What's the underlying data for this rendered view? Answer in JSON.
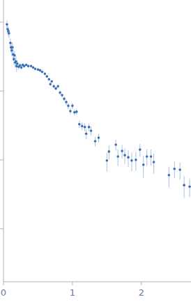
{
  "chart_data": {
    "type": "scatter",
    "log": "y",
    "tick_labels": "x",
    "marker": "circle",
    "color": "#3b6db3",
    "xlim": [
      0,
      2.72
    ],
    "xticks": [
      0,
      1,
      2
    ],
    "ylim": [
      0.00017,
      2.1
    ],
    "yticks": [
      0.001,
      0.01,
      0.1,
      1
    ],
    "x": [
      0.05,
      0.06,
      0.07,
      0.08,
      0.1,
      0.11,
      0.12,
      0.13,
      0.14,
      0.15,
      0.16,
      0.17,
      0.18,
      0.19,
      0.2,
      0.22,
      0.24,
      0.26,
      0.28,
      0.3,
      0.33,
      0.36,
      0.4,
      0.43,
      0.46,
      0.5,
      0.53,
      0.56,
      0.6,
      0.63,
      0.66,
      0.68,
      0.7,
      0.73,
      0.76,
      0.79,
      0.82,
      0.85,
      0.88,
      0.91,
      0.94,
      0.97,
      1.0,
      1.03,
      1.06,
      1.1,
      1.14,
      1.18,
      1.2,
      1.24,
      1.27,
      1.33,
      1.38,
      1.5,
      1.53,
      1.63,
      1.66,
      1.72,
      1.76,
      1.81,
      1.86,
      1.92,
      1.98,
      2.03,
      2.08,
      2.14,
      2.18,
      2.4,
      2.48,
      2.56,
      2.62,
      2.7
    ],
    "values": [
      0.93,
      0.79,
      0.74,
      0.69,
      0.5,
      0.43,
      0.39,
      0.43,
      0.34,
      0.29,
      0.33,
      0.26,
      0.27,
      0.23,
      0.25,
      0.225,
      0.236,
      0.22,
      0.24,
      0.23,
      0.24,
      0.23,
      0.23,
      0.22,
      0.21,
      0.205,
      0.2,
      0.19,
      0.178,
      0.163,
      0.148,
      0.126,
      0.138,
      0.117,
      0.109,
      0.117,
      0.095,
      0.087,
      0.077,
      0.069,
      0.061,
      0.051,
      0.061,
      0.049,
      0.05,
      0.033,
      0.031,
      0.03,
      0.024,
      0.03,
      0.0265,
      0.0187,
      0.021,
      0.0098,
      0.0132,
      0.0166,
      0.0112,
      0.0135,
      0.0117,
      0.0109,
      0.0098,
      0.01,
      0.0141,
      0.0085,
      0.0112,
      0.0112,
      0.0093,
      0.006,
      0.0074,
      0.0072,
      0.0043,
      0.0041
    ],
    "errors": [
      0.14,
      0.12,
      0.11,
      0.1,
      0.08,
      0.07,
      0.07,
      0.08,
      0.06,
      0.05,
      0.05,
      0.04,
      0.05,
      0.04,
      0.03,
      0.02,
      0.02,
      0.015,
      0.015,
      0.012,
      0.01,
      0.01,
      0.009,
      0.009,
      0.008,
      0.008,
      0.008,
      0.008,
      0.008,
      0.007,
      0.007,
      0.007,
      0.007,
      0.007,
      0.006,
      0.006,
      0.006,
      0.006,
      0.006,
      0.006,
      0.006,
      0.005,
      0.006,
      0.005,
      0.005,
      0.004,
      0.004,
      0.004,
      0.004,
      0.004,
      0.004,
      0.003,
      0.003,
      0.003,
      0.003,
      0.003,
      0.003,
      0.003,
      0.003,
      0.003,
      0.003,
      0.003,
      0.003,
      0.003,
      0.003,
      0.003,
      0.003,
      0.002,
      0.002,
      0.002,
      0.0015,
      0.0012
    ]
  }
}
